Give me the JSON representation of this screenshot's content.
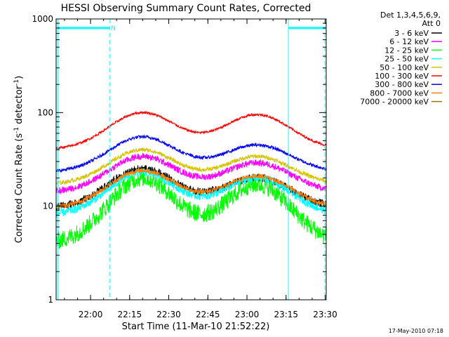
{
  "chart_data": {
    "type": "line",
    "title": "HESSI Observing Summary Count Rates, Corrected",
    "xlabel": "Start Time (11-Mar-10 21:52:22)",
    "ylabel_main": "Corrected Count Rate (s",
    "ylabel_sup1": "-1",
    "ylabel_mid": " detector",
    "ylabel_sup2": "-1",
    "ylabel_end": ")",
    "yscale": "log",
    "ylim": [
      1,
      1000
    ],
    "xlim_minutes": [
      -5.6,
      98.0
    ],
    "x_unit": "minutes after 21:52:22",
    "x_ticks": [
      {
        "label": "22:00",
        "minute": 7.6
      },
      {
        "label": "22:15",
        "minute": 22.6
      },
      {
        "label": "22:30",
        "minute": 37.6
      },
      {
        "label": "22:45",
        "minute": 52.6
      },
      {
        "label": "23:00",
        "minute": 67.6
      },
      {
        "label": "23:15",
        "minute": 82.6
      },
      {
        "label": "23:30",
        "minute": 97.6
      }
    ],
    "y_ticks": [
      {
        "label": "1",
        "value": 1
      },
      {
        "label": "10",
        "value": 10
      },
      {
        "label": "100",
        "value": 100
      },
      {
        "label": "1000",
        "value": 1000
      }
    ],
    "legend_header": [
      "Det 1,3,4,5,6,9,",
      "Att 0"
    ],
    "legend_placement": "right",
    "series": [
      {
        "name": "3 - 6 keV",
        "color": "#000000",
        "base": 9.5,
        "peak1": 25,
        "peak2": 20,
        "noise": 0.1
      },
      {
        "name": "6 - 12 keV",
        "color": "#ff00ff",
        "base": 14,
        "peak1": 34,
        "peak2": 29,
        "noise": 0.08
      },
      {
        "name": "12 - 25 keV",
        "color": "#00ff00",
        "base": 4,
        "peak1": 20,
        "peak2": 17,
        "noise": 0.22
      },
      {
        "name": "25 - 50 keV",
        "color": "#00ffff",
        "base": 8,
        "peak1": 23,
        "peak2": 20,
        "noise": 0.1
      },
      {
        "name": "50 - 100 keV",
        "color": "#d4c400",
        "base": 17,
        "peak1": 40,
        "peak2": 34,
        "noise": 0.05
      },
      {
        "name": "100 - 300 keV",
        "color": "#ff0000",
        "base": 40,
        "peak1": 100,
        "peak2": 95,
        "noise": 0.03
      },
      {
        "name": "300 - 800 keV",
        "color": "#0000ff",
        "base": 23,
        "peak1": 55,
        "peak2": 45,
        "noise": 0.04
      },
      {
        "name": "800 - 7000 keV",
        "color": "#ff8000",
        "base": 9.5,
        "peak1": 24,
        "peak2": 21,
        "noise": 0.06
      },
      {
        "name": "7000 - 20000 keV",
        "color": "#a07000",
        "base": null,
        "peak1": null,
        "peak2": null,
        "noise": 0
      }
    ],
    "peak_centers_minutes": [
      27.5,
      71.5
    ],
    "peak_width_minutes": 13,
    "vertical_markers_minutes": [
      -5.0,
      14.9,
      83.5,
      97.5
    ],
    "segments": [
      {
        "label": "",
        "start_minute": -5.0,
        "end_minute": 14.9,
        "value": 800
      },
      {
        "label": "N",
        "start_minute": 14.9,
        "end_minute": 16.3,
        "value": 800
      },
      {
        "label": "",
        "start_minute": 83.5,
        "end_minute": 97.5,
        "value": 800
      }
    ],
    "grid": false
  },
  "footer_date": "17-May-2010 07:18",
  "colors": {
    "axis": "#000000",
    "marker": "#00ffff",
    "background": "#ffffff"
  }
}
